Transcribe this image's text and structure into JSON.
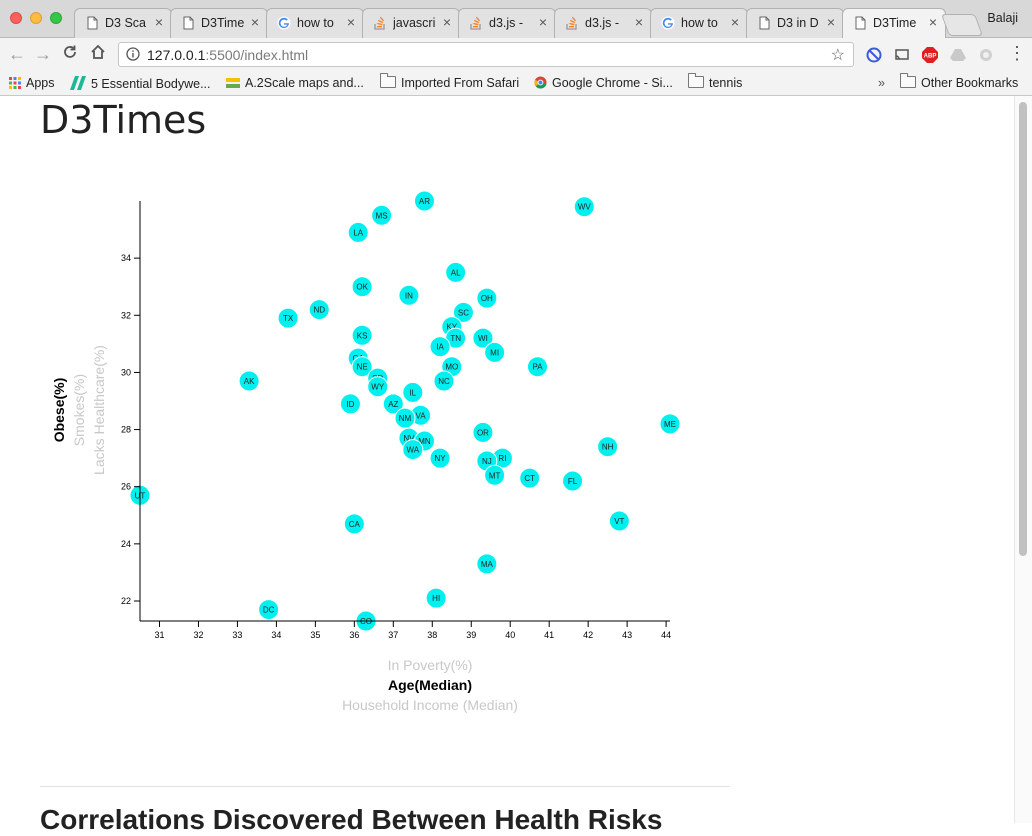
{
  "browser": {
    "tabs": [
      {
        "title": "D3 Sca",
        "icon": "page-icon",
        "active": false
      },
      {
        "title": "D3Time",
        "icon": "page-icon",
        "active": false
      },
      {
        "title": "how to",
        "icon": "google-icon",
        "active": false
      },
      {
        "title": "javascri",
        "icon": "stackoverflow-icon",
        "active": false
      },
      {
        "title": "d3.js -",
        "icon": "stackoverflow-icon",
        "active": false
      },
      {
        "title": "d3.js -",
        "icon": "stackoverflow-icon",
        "active": false
      },
      {
        "title": "how to",
        "icon": "google-icon",
        "active": false
      },
      {
        "title": "D3 in D",
        "icon": "page-icon",
        "active": false
      },
      {
        "title": "D3Time",
        "icon": "page-icon",
        "active": true
      }
    ],
    "profile_name": "Balaji",
    "url_host": "127.0.0.1",
    "url_rest": ":5500/index.html",
    "bookmarks": [
      {
        "label": "Apps",
        "icon": "apps-grid-icon"
      },
      {
        "label": "5 Essential Bodywe...",
        "icon": "bookmark-site-icon"
      },
      {
        "label": "A.2Scale maps and...",
        "icon": "bookmark-site-icon"
      },
      {
        "label": "Imported From Safari",
        "icon": "folder-icon"
      },
      {
        "label": "Google Chrome - Si...",
        "icon": "chrome-icon"
      },
      {
        "label": "tennis",
        "icon": "folder-icon"
      }
    ],
    "bookmarks_overflow": "»",
    "other_bookmarks": "Other Bookmarks"
  },
  "page": {
    "title": "D3Times",
    "section_heading": "Correlations Discovered Between Health Risks"
  },
  "colors": {
    "marker": "#00f0f0",
    "active_label": "#000000",
    "inactive_label": "#c8c8c8"
  },
  "chart_data": {
    "type": "scatter",
    "xlim": [
      30.5,
      44.1
    ],
    "ylim": [
      21.3,
      36.0
    ],
    "x_ticks": [
      31,
      32,
      33,
      34,
      35,
      36,
      37,
      38,
      39,
      40,
      41,
      42,
      43,
      44
    ],
    "y_ticks": [
      22,
      24,
      26,
      28,
      30,
      32,
      34
    ],
    "x_labels": [
      {
        "text": "In Poverty(%)",
        "active": false
      },
      {
        "text": "Age(Median)",
        "active": true
      },
      {
        "text": "Household Income (Median)",
        "active": false
      }
    ],
    "y_labels": [
      {
        "text": "Obese(%)",
        "active": true
      },
      {
        "text": "Smokes(%)",
        "active": false
      },
      {
        "text": "Lacks Healthcare(%)",
        "active": false
      }
    ],
    "points": [
      {
        "abbr": "AR",
        "x": 37.8,
        "y": 36.0
      },
      {
        "abbr": "WV",
        "x": 41.9,
        "y": 35.8
      },
      {
        "abbr": "MS",
        "x": 36.7,
        "y": 35.5
      },
      {
        "abbr": "LA",
        "x": 36.1,
        "y": 34.9
      },
      {
        "abbr": "AL",
        "x": 38.6,
        "y": 33.5
      },
      {
        "abbr": "OK",
        "x": 36.2,
        "y": 33.0
      },
      {
        "abbr": "IN",
        "x": 37.4,
        "y": 32.7
      },
      {
        "abbr": "OH",
        "x": 39.4,
        "y": 32.6
      },
      {
        "abbr": "ND",
        "x": 35.1,
        "y": 32.2
      },
      {
        "abbr": "SC",
        "x": 38.8,
        "y": 32.1
      },
      {
        "abbr": "TX",
        "x": 34.3,
        "y": 31.9
      },
      {
        "abbr": "KY",
        "x": 38.5,
        "y": 31.6
      },
      {
        "abbr": "KS",
        "x": 36.2,
        "y": 31.3
      },
      {
        "abbr": "TN",
        "x": 38.6,
        "y": 31.2
      },
      {
        "abbr": "WI",
        "x": 39.3,
        "y": 31.2
      },
      {
        "abbr": "IA",
        "x": 38.2,
        "y": 30.9
      },
      {
        "abbr": "MI",
        "x": 39.6,
        "y": 30.7
      },
      {
        "abbr": "GA",
        "x": 36.1,
        "y": 30.5
      },
      {
        "abbr": "NE",
        "x": 36.2,
        "y": 30.2
      },
      {
        "abbr": "MO",
        "x": 38.5,
        "y": 30.2
      },
      {
        "abbr": "PA",
        "x": 40.7,
        "y": 30.2
      },
      {
        "abbr": "SD",
        "x": 36.6,
        "y": 29.8
      },
      {
        "abbr": "AK",
        "x": 33.3,
        "y": 29.7
      },
      {
        "abbr": "NC",
        "x": 38.3,
        "y": 29.7
      },
      {
        "abbr": "WY",
        "x": 36.6,
        "y": 29.5
      },
      {
        "abbr": "IL",
        "x": 37.5,
        "y": 29.3
      },
      {
        "abbr": "ID",
        "x": 35.9,
        "y": 28.9
      },
      {
        "abbr": "AZ",
        "x": 37.0,
        "y": 28.9
      },
      {
        "abbr": "VA",
        "x": 37.7,
        "y": 28.5
      },
      {
        "abbr": "NM",
        "x": 37.3,
        "y": 28.4
      },
      {
        "abbr": "ME",
        "x": 44.1,
        "y": 28.2
      },
      {
        "abbr": "OR",
        "x": 39.3,
        "y": 27.9
      },
      {
        "abbr": "NV",
        "x": 37.4,
        "y": 27.7
      },
      {
        "abbr": "MN",
        "x": 37.8,
        "y": 27.6
      },
      {
        "abbr": "NH",
        "x": 42.5,
        "y": 27.4
      },
      {
        "abbr": "WA",
        "x": 37.5,
        "y": 27.3
      },
      {
        "abbr": "NY",
        "x": 38.2,
        "y": 27.0
      },
      {
        "abbr": "RI",
        "x": 39.8,
        "y": 27.0
      },
      {
        "abbr": "NJ",
        "x": 39.4,
        "y": 26.9
      },
      {
        "abbr": "MT",
        "x": 39.6,
        "y": 26.4
      },
      {
        "abbr": "CT",
        "x": 40.5,
        "y": 26.3
      },
      {
        "abbr": "FL",
        "x": 41.6,
        "y": 26.2
      },
      {
        "abbr": "UT",
        "x": 30.5,
        "y": 25.7
      },
      {
        "abbr": "VT",
        "x": 42.8,
        "y": 24.8
      },
      {
        "abbr": "CA",
        "x": 36.0,
        "y": 24.7
      },
      {
        "abbr": "MA",
        "x": 39.4,
        "y": 23.3
      },
      {
        "abbr": "HI",
        "x": 38.1,
        "y": 22.1
      },
      {
        "abbr": "DC",
        "x": 33.8,
        "y": 21.7
      },
      {
        "abbr": "CO",
        "x": 36.3,
        "y": 21.3
      }
    ]
  }
}
